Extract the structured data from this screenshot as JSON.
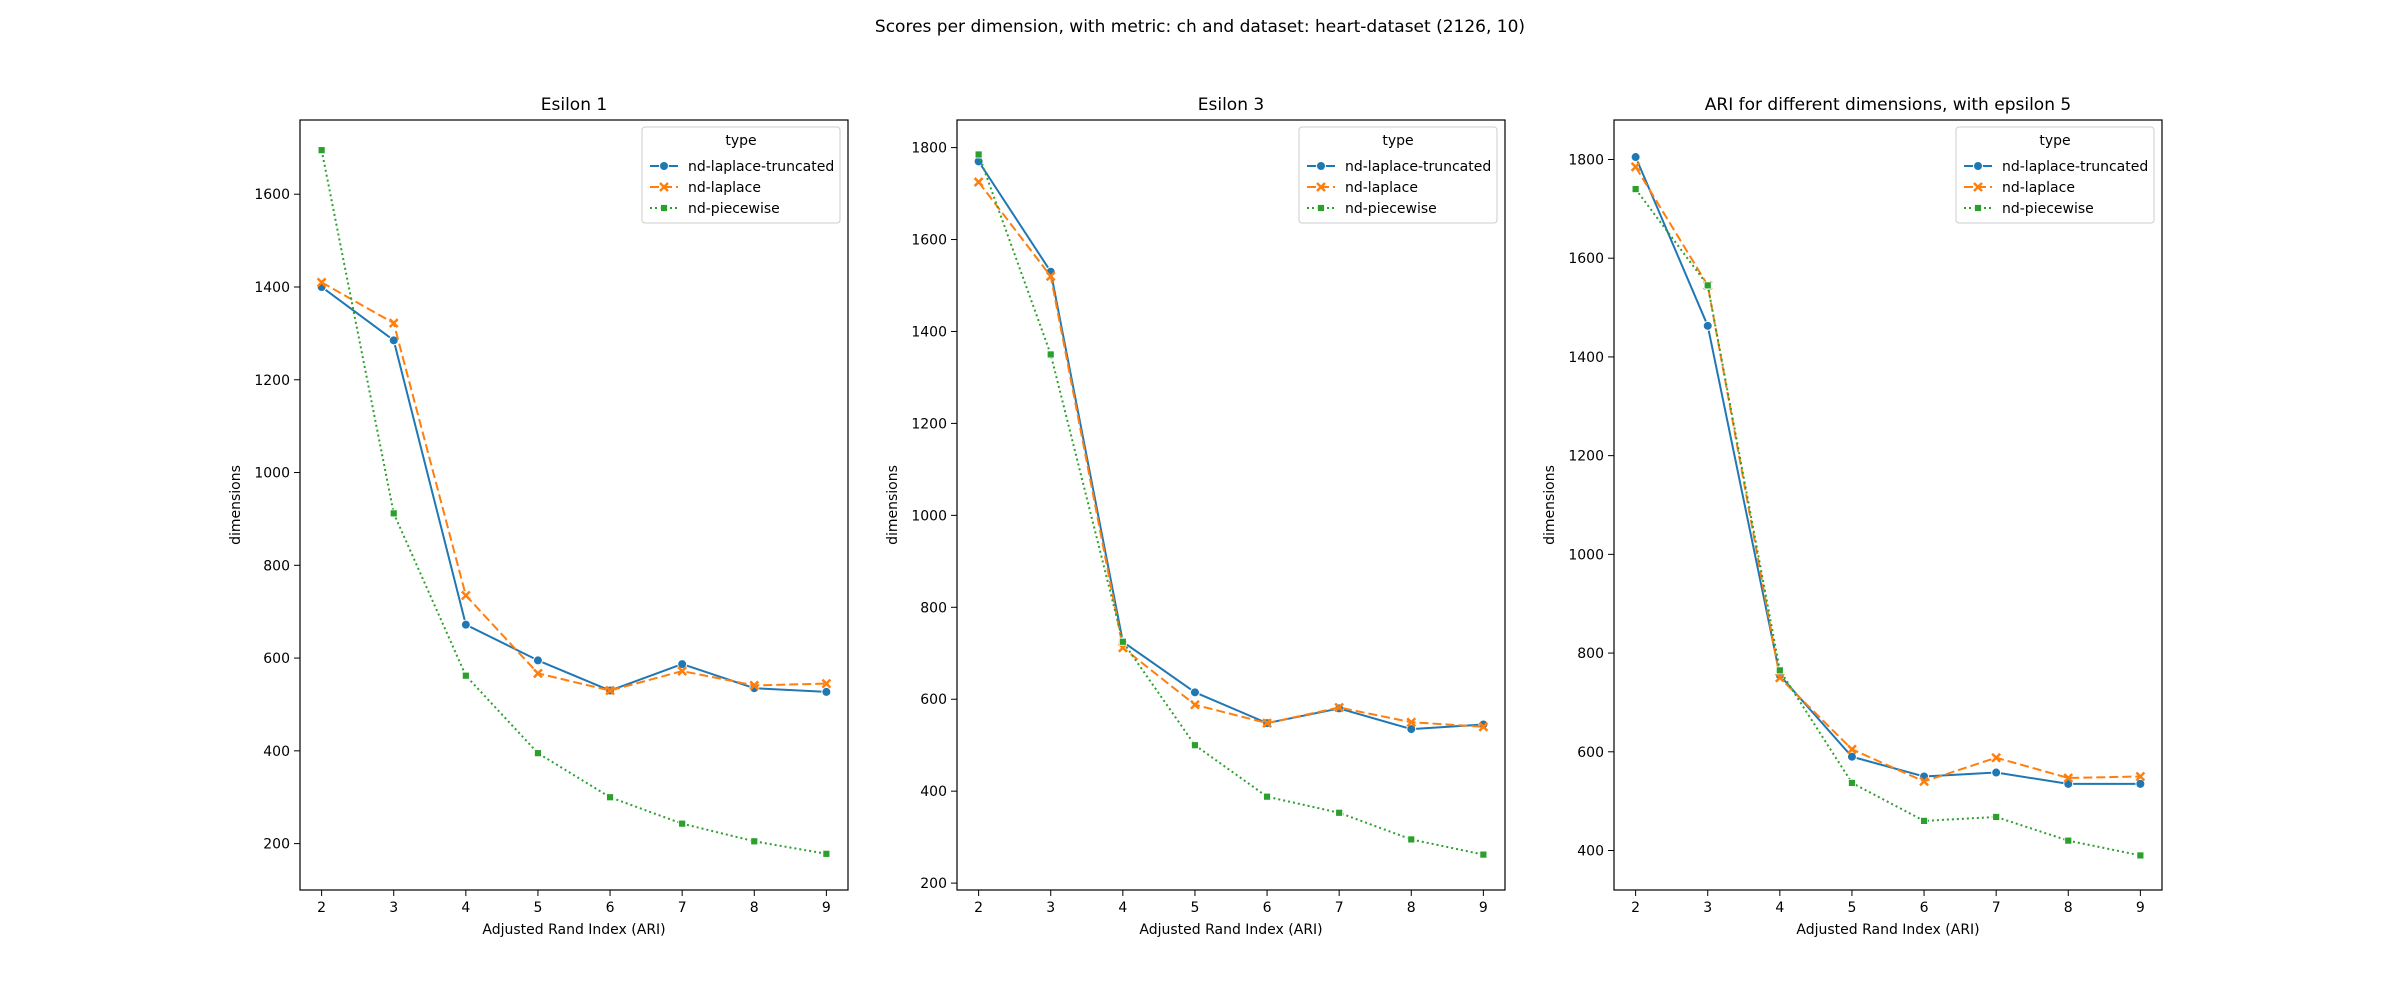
{
  "figure": {
    "suptitle": "Scores per dimension, with metric: ch and dataset: heart-dataset (2126, 10)"
  },
  "legend": {
    "title": "type",
    "placement": "upper right"
  },
  "series_styles": [
    {
      "name": "nd-laplace-truncated",
      "color": "#1f77b4",
      "dash": "solid",
      "marker": "circle"
    },
    {
      "name": "nd-laplace",
      "color": "#ff7f0e",
      "dash": "dashed",
      "marker": "x"
    },
    {
      "name": "nd-piecewise",
      "color": "#2ca02c",
      "dash": "dotted",
      "marker": "square"
    }
  ],
  "chart_data": [
    {
      "type": "line",
      "title": "Esilon 1",
      "xlabel": "Adjusted Rand Index (ARI)",
      "ylabel": "dimensions",
      "x": [
        2,
        3,
        4,
        5,
        6,
        7,
        8,
        9
      ],
      "xlim": [
        1.7,
        9.3
      ],
      "ylim": [
        100,
        1760
      ],
      "yticks": [
        200,
        400,
        600,
        800,
        1000,
        1200,
        1400,
        1600
      ],
      "grid": false,
      "series": [
        {
          "name": "nd-laplace-truncated",
          "values": [
            1400,
            1285,
            672,
            595,
            530,
            587,
            535,
            527
          ]
        },
        {
          "name": "nd-laplace",
          "values": [
            1410,
            1322,
            735,
            567,
            530,
            572,
            541,
            545
          ]
        },
        {
          "name": "nd-piecewise",
          "values": [
            1695,
            912,
            562,
            395,
            300,
            243,
            205,
            178
          ]
        }
      ]
    },
    {
      "type": "line",
      "title": "Esilon 3",
      "xlabel": "Adjusted Rand Index (ARI)",
      "ylabel": "dimensions",
      "x": [
        2,
        3,
        4,
        5,
        6,
        7,
        8,
        9
      ],
      "xlim": [
        1.7,
        9.3
      ],
      "ylim": [
        185,
        1860
      ],
      "yticks": [
        200,
        400,
        600,
        800,
        1000,
        1200,
        1400,
        1600,
        1800
      ],
      "grid": false,
      "series": [
        {
          "name": "nd-laplace-truncated",
          "values": [
            1770,
            1530,
            725,
            615,
            548,
            580,
            535,
            545
          ]
        },
        {
          "name": "nd-laplace",
          "values": [
            1725,
            1520,
            712,
            588,
            548,
            582,
            550,
            540
          ]
        },
        {
          "name": "nd-piecewise",
          "values": [
            1785,
            1350,
            725,
            500,
            388,
            353,
            295,
            262
          ]
        }
      ]
    },
    {
      "type": "line",
      "title": "ARI for different dimensions, with epsilon 5",
      "xlabel": "Adjusted Rand Index (ARI)",
      "ylabel": "dimensions",
      "x": [
        2,
        3,
        4,
        5,
        6,
        7,
        8,
        9
      ],
      "xlim": [
        1.7,
        9.3
      ],
      "ylim": [
        320,
        1880
      ],
      "yticks": [
        400,
        600,
        800,
        1000,
        1200,
        1400,
        1600,
        1800
      ],
      "grid": false,
      "series": [
        {
          "name": "nd-laplace-truncated",
          "values": [
            1805,
            1463,
            755,
            590,
            550,
            558,
            535,
            535
          ]
        },
        {
          "name": "nd-laplace",
          "values": [
            1785,
            1545,
            750,
            605,
            540,
            588,
            547,
            550
          ]
        },
        {
          "name": "nd-piecewise",
          "values": [
            1740,
            1545,
            765,
            537,
            460,
            468,
            420,
            390
          ]
        }
      ]
    }
  ]
}
